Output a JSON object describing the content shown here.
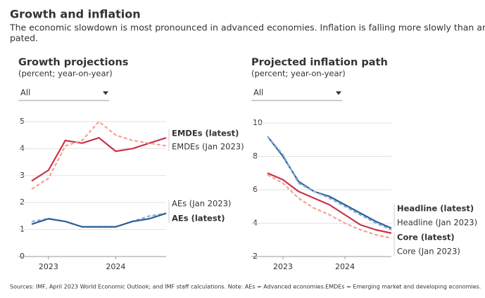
{
  "title": "Growth and inflation",
  "subtitle": [
    "The economic slowdown is most pronounced in advanced economies. Inflation is falling more slowly than antici-",
    "pated."
  ],
  "source": "Sources: IMF, April 2023 World Economic Outlook; and IMF staff calculations. Note: AEs = Advanced economies.EMDEs = Emerging market and developing economies.",
  "chart_data": [
    {
      "type": "line",
      "title": "Growth projections",
      "subtitle": "(percent; year-on-year)",
      "filter": "All",
      "categories": [
        null,
        "2023",
        null,
        null,
        null,
        "2024",
        null,
        null,
        null
      ],
      "ylim": [
        0,
        5
      ],
      "yticks": [
        0,
        1,
        2,
        3,
        4,
        5
      ],
      "grid": true,
      "series": [
        {
          "name": "EMDEs (latest)",
          "color": "#c8334a",
          "dashed": false,
          "values": [
            2.8,
            3.2,
            4.3,
            4.2,
            4.4,
            3.9,
            4.0,
            4.2,
            4.4
          ]
        },
        {
          "name": "EMDEs (Jan 2023)",
          "color": "#f2a38f",
          "dashed": true,
          "values": [
            2.5,
            2.9,
            4.1,
            4.3,
            5.0,
            4.5,
            4.3,
            4.2,
            4.1
          ]
        },
        {
          "name": "AEs (Jan 2023)",
          "color": "#86aedb",
          "dashed": true,
          "values": [
            1.3,
            1.4,
            1.3,
            1.1,
            1.1,
            1.1,
            1.3,
            1.5,
            1.6
          ]
        },
        {
          "name": "AEs (latest)",
          "color": "#2d5e95",
          "dashed": false,
          "values": [
            1.2,
            1.4,
            1.3,
            1.1,
            1.1,
            1.1,
            1.3,
            1.4,
            1.6
          ]
        }
      ]
    },
    {
      "type": "line",
      "title": "Projected inflation path",
      "subtitle": "(percent; year-on-year)",
      "filter": "All",
      "categories": [
        null,
        "2023",
        null,
        null,
        null,
        "2024",
        null,
        null,
        null
      ],
      "ylim": [
        2,
        10
      ],
      "yticks": [
        2,
        4,
        6,
        8,
        10
      ],
      "grid": true,
      "series": [
        {
          "name": "Headline (latest)",
          "color": "#2d5e95",
          "dashed": false,
          "values": [
            9.2,
            8.0,
            6.5,
            5.9,
            5.6,
            5.1,
            4.6,
            4.1,
            3.7
          ]
        },
        {
          "name": "Headline (Jan 2023)",
          "color": "#86aedb",
          "dashed": true,
          "values": [
            9.2,
            8.1,
            6.4,
            5.9,
            5.5,
            5.0,
            4.5,
            4.0,
            3.6
          ]
        },
        {
          "name": "Core (latest)",
          "color": "#c8334a",
          "dashed": false,
          "values": [
            7.0,
            6.6,
            5.9,
            5.5,
            5.1,
            4.5,
            3.9,
            3.6,
            3.4
          ]
        },
        {
          "name": "Core (Jan 2023)",
          "color": "#f2a38f",
          "dashed": true,
          "values": [
            6.9,
            6.4,
            5.5,
            4.9,
            4.5,
            4.0,
            3.6,
            3.3,
            3.1
          ]
        }
      ]
    }
  ]
}
